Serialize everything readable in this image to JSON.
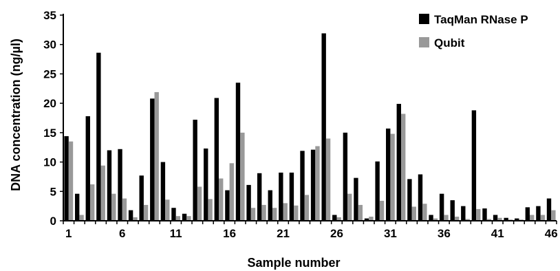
{
  "chart_data": {
    "type": "bar",
    "title": "",
    "xlabel": "Sample number",
    "ylabel": "DNA concentration (ng/µl)",
    "ylim": [
      0,
      35
    ],
    "yticks": [
      0,
      5,
      10,
      15,
      20,
      25,
      30,
      35
    ],
    "categories": [
      "1",
      "2",
      "3",
      "4",
      "5",
      "6",
      "7",
      "8",
      "9",
      "10",
      "11",
      "12",
      "13",
      "14",
      "15",
      "16",
      "17",
      "18",
      "19",
      "20",
      "21",
      "22",
      "23",
      "24",
      "25",
      "26",
      "27",
      "28",
      "29",
      "30",
      "31",
      "32",
      "33",
      "34",
      "35",
      "36",
      "37",
      "38",
      "39",
      "40",
      "41",
      "42",
      "43",
      "44",
      "45",
      "46"
    ],
    "xtick_labels": [
      "1",
      "6",
      "11",
      "16",
      "21",
      "26",
      "31",
      "36",
      "41",
      "46"
    ],
    "legend_position": "top-right",
    "grid": false,
    "series": [
      {
        "name": "TaqMan RNase P",
        "color": "#000000",
        "values": [
          14.4,
          4.6,
          17.8,
          28.6,
          12.0,
          12.2,
          1.8,
          7.7,
          20.8,
          10.0,
          2.2,
          1.2,
          17.2,
          12.3,
          20.9,
          5.2,
          23.5,
          6.1,
          8.1,
          5.2,
          8.2,
          8.2,
          11.9,
          12.1,
          31.9,
          1.0,
          15.0,
          7.3,
          0.4,
          10.1,
          15.7,
          19.9,
          7.1,
          7.9,
          1.0,
          4.6,
          3.5,
          2.5,
          18.8,
          2.1,
          1.0,
          0.5,
          0.4,
          2.3,
          2.5,
          3.8
        ]
      },
      {
        "name": "Qubit",
        "color": "#999999",
        "values": [
          13.5,
          1.0,
          6.2,
          9.4,
          4.6,
          3.8,
          0.6,
          2.7,
          21.9,
          3.6,
          0.8,
          0.8,
          5.8,
          3.7,
          7.2,
          9.8,
          15.0,
          2.2,
          2.7,
          2.2,
          3.0,
          2.6,
          4.4,
          12.7,
          14.0,
          0.6,
          4.6,
          2.7,
          0.7,
          3.4,
          14.8,
          18.2,
          2.4,
          2.9,
          0.4,
          1.0,
          0.7,
          0.3,
          2.0,
          0.3,
          0.5,
          0.2,
          0.2,
          1.0,
          1.0,
          1.8
        ]
      }
    ]
  }
}
